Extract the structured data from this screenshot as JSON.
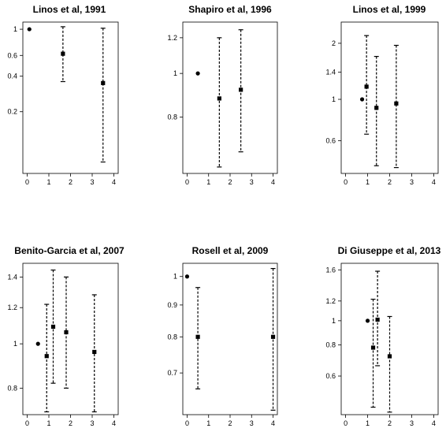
{
  "chart_data": [
    {
      "type": "scatter",
      "title": "Linos et al, 1991",
      "xlabel": "",
      "ylabel": "",
      "xlim": [
        -0.2,
        4.2
      ],
      "xticks": [
        0,
        1,
        2,
        3,
        4
      ],
      "ylog": true,
      "ylim": [
        0.06,
        1.15
      ],
      "yticks": [
        1,
        0.6,
        0.4,
        0.2
      ],
      "points": [
        {
          "x": 0.1,
          "y": 1.0,
          "lower": null,
          "upper": null
        },
        {
          "x": 1.65,
          "y": 0.62,
          "lower": 0.36,
          "upper": 1.05
        },
        {
          "x": 3.5,
          "y": 0.35,
          "lower": 0.075,
          "upper": 1.02
        }
      ]
    },
    {
      "type": "scatter",
      "title": "Shapiro et al, 1996",
      "xlabel": "",
      "ylabel": "",
      "xlim": [
        -0.2,
        4.2
      ],
      "xticks": [
        0,
        1,
        2,
        3,
        4
      ],
      "ylog": true,
      "ylim": [
        0.6,
        1.3
      ],
      "yticks": [
        1.2,
        1,
        0.8
      ],
      "points": [
        {
          "x": 0.5,
          "y": 1.0,
          "lower": null,
          "upper": null
        },
        {
          "x": 1.5,
          "y": 0.88,
          "lower": 0.62,
          "upper": 1.2
        },
        {
          "x": 2.5,
          "y": 0.92,
          "lower": 0.67,
          "upper": 1.25
        }
      ]
    },
    {
      "type": "scatter",
      "title": "Linos et al, 1999",
      "xlabel": "",
      "ylabel": "",
      "xlim": [
        -0.2,
        4.2
      ],
      "xticks": [
        0,
        1,
        2,
        3,
        4
      ],
      "ylog": true,
      "ylim": [
        0.4,
        2.6
      ],
      "yticks": [
        2,
        1.4,
        1,
        0.6
      ],
      "points": [
        {
          "x": 0.75,
          "y": 1.0,
          "lower": null,
          "upper": null
        },
        {
          "x": 0.95,
          "y": 1.17,
          "lower": 0.65,
          "upper": 2.2
        },
        {
          "x": 1.4,
          "y": 0.9,
          "lower": 0.44,
          "upper": 1.7
        },
        {
          "x": 2.3,
          "y": 0.95,
          "lower": 0.43,
          "upper": 1.95
        }
      ]
    },
    {
      "type": "scatter",
      "title": "Benito-Garcia et al, 2007",
      "xlabel": "",
      "ylabel": "",
      "xlim": [
        -0.2,
        4.2
      ],
      "xticks": [
        0,
        1,
        2,
        3,
        4
      ],
      "ylog": true,
      "ylim": [
        0.7,
        1.5
      ],
      "yticks": [
        1.4,
        1.2,
        1,
        0.8
      ],
      "points": [
        {
          "x": 0.5,
          "y": 1.0,
          "lower": null,
          "upper": null
        },
        {
          "x": 0.9,
          "y": 0.94,
          "lower": 0.71,
          "upper": 1.22
        },
        {
          "x": 1.2,
          "y": 1.09,
          "lower": 0.82,
          "upper": 1.45
        },
        {
          "x": 1.8,
          "y": 1.06,
          "lower": 0.8,
          "upper": 1.4
        },
        {
          "x": 3.1,
          "y": 0.96,
          "lower": 0.71,
          "upper": 1.28
        }
      ]
    },
    {
      "type": "scatter",
      "title": "Rosell et al, 2009",
      "xlabel": "",
      "ylabel": "",
      "xlim": [
        -0.2,
        4.2
      ],
      "xticks": [
        0,
        1,
        2,
        3,
        4
      ],
      "ylog": true,
      "ylim": [
        0.6,
        1.05
      ],
      "yticks": [
        1,
        0.9,
        0.8,
        0.7
      ],
      "points": [
        {
          "x": 0.0,
          "y": 1.0,
          "lower": null,
          "upper": null
        },
        {
          "x": 0.5,
          "y": 0.8,
          "lower": 0.66,
          "upper": 0.96
        },
        {
          "x": 4.0,
          "y": 0.8,
          "lower": 0.61,
          "upper": 1.03
        }
      ]
    },
    {
      "type": "scatter",
      "title": "Di Giuseppe et al, 2013",
      "xlabel": "",
      "ylabel": "",
      "xlim": [
        -0.2,
        4.2
      ],
      "xticks": [
        0,
        1,
        2,
        3,
        4
      ],
      "ylog": true,
      "ylim": [
        0.42,
        1.7
      ],
      "yticks": [
        1.6,
        1.2,
        1,
        0.8,
        0.6
      ],
      "points": [
        {
          "x": 1.0,
          "y": 1.0,
          "lower": null,
          "upper": null
        },
        {
          "x": 1.25,
          "y": 0.78,
          "lower": 0.45,
          "upper": 1.22
        },
        {
          "x": 1.45,
          "y": 1.01,
          "lower": 0.66,
          "upper": 1.58
        },
        {
          "x": 2.0,
          "y": 0.72,
          "lower": 0.43,
          "upper": 1.04
        }
      ]
    }
  ]
}
